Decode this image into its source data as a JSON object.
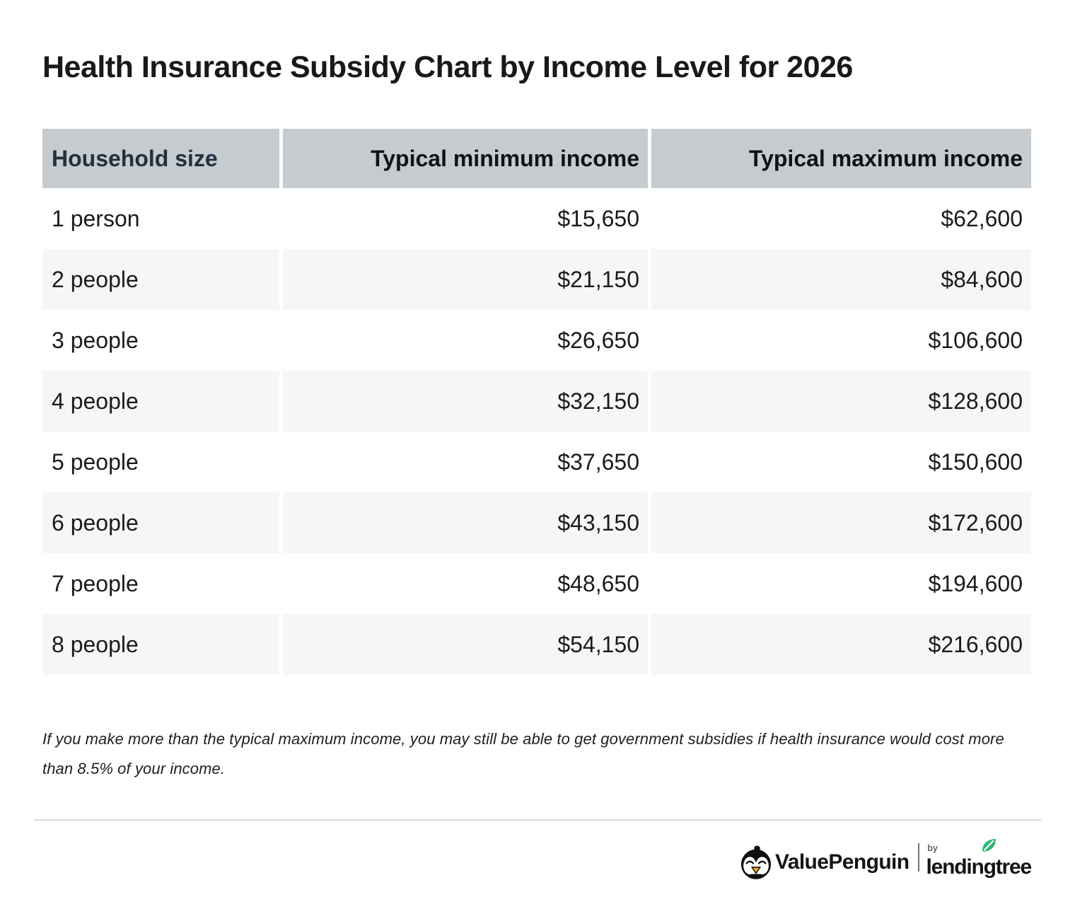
{
  "title": "Health Insurance Subsidy Chart by Income Level for 2026",
  "table": {
    "columns": [
      "Household size",
      "Typical minimum income",
      "Typical maximum income"
    ],
    "rows": [
      {
        "household": "1 person",
        "min": "$15,650",
        "max": "$62,600"
      },
      {
        "household": "2 people",
        "min": "$21,150",
        "max": "$84,600"
      },
      {
        "household": "3 people",
        "min": "$26,650",
        "max": "$106,600"
      },
      {
        "household": "4 people",
        "min": "$32,150",
        "max": "$128,600"
      },
      {
        "household": "5 people",
        "min": "$37,650",
        "max": "$150,600"
      },
      {
        "household": "6 people",
        "min": "$43,150",
        "max": "$172,600"
      },
      {
        "household": "7 people",
        "min": "$48,650",
        "max": "$194,600"
      },
      {
        "household": "8 people",
        "min": "$54,150",
        "max": "$216,600"
      }
    ]
  },
  "chart_data": {
    "type": "table",
    "title": "Health Insurance Subsidy Chart by Income Level for 2026",
    "columns": [
      "Household size",
      "Typical minimum income",
      "Typical maximum income"
    ],
    "rows": [
      [
        "1 person",
        15650,
        62600
      ],
      [
        "2 people",
        21150,
        84600
      ],
      [
        "3 people",
        26650,
        106600
      ],
      [
        "4 people",
        32150,
        128600
      ],
      [
        "5 people",
        37650,
        150600
      ],
      [
        "6 people",
        43150,
        172600
      ],
      [
        "7 people",
        48650,
        194600
      ],
      [
        "8 people",
        54150,
        216600
      ]
    ]
  },
  "footnote": {
    "line1": "If you make more than the typical maximum income, you may still be able to get government subsidies if health insurance would cost more",
    "line2": "than 8.5% of your income."
  },
  "footer": {
    "valuepenguin": "ValuePenguin",
    "by": "by",
    "lendingtree": "lendingtree"
  },
  "colors": {
    "header_bg": "#c5cbce",
    "stripe_bg": "#f5f6f6",
    "header_text_navy": "#22303f",
    "body_text": "#1b1b1b",
    "divider_gray": "#d9d9d9",
    "leaf_green": "#2bb673",
    "beak_orange": "#f2a51f"
  }
}
